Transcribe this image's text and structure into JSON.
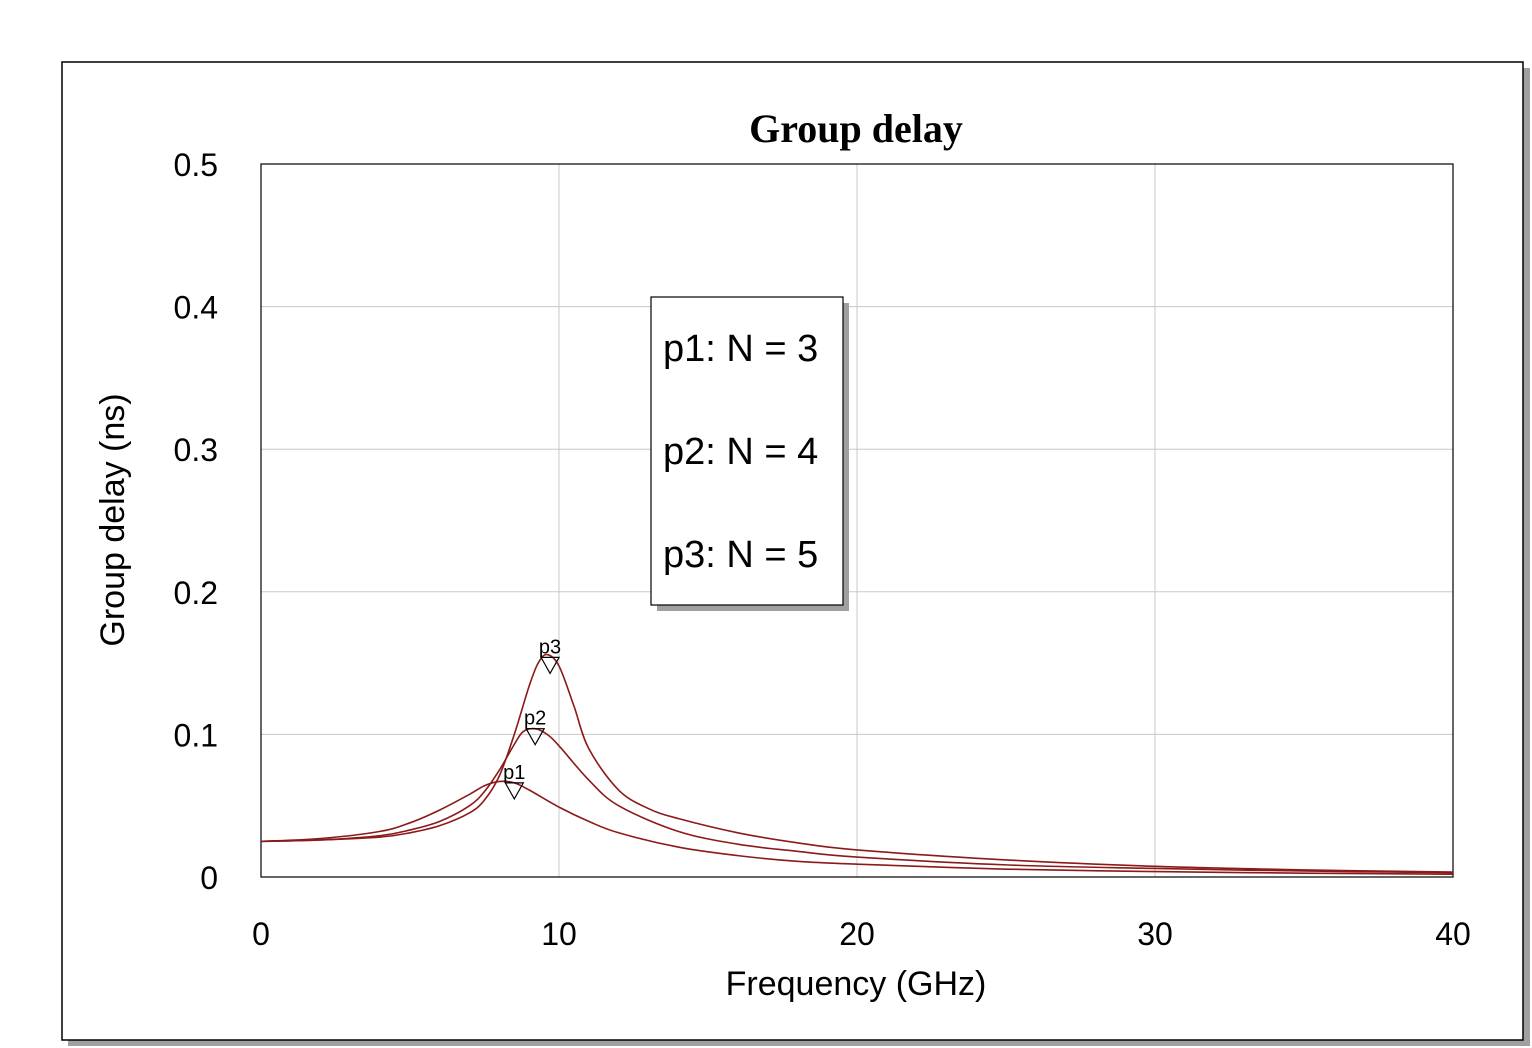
{
  "chart_data": {
    "type": "line",
    "title": "Group delay",
    "xlabel": "Frequency (GHz)",
    "ylabel": "Group delay (ns)",
    "xlim": [
      0,
      40
    ],
    "ylim": [
      0,
      0.5
    ],
    "xticks": [
      "0",
      "10",
      "20",
      "30",
      "40"
    ],
    "yticks": [
      "0",
      "0.1",
      "0.2",
      "0.3",
      "0.4",
      "0.5"
    ],
    "grid": true,
    "legend_position": "center-top",
    "line_color": "#8b1a1a",
    "legend": [
      "p1: N = 3",
      "p2: N = 4",
      "p3: N = 5"
    ],
    "series": [
      {
        "name": "p1",
        "marker": {
          "label": "p1",
          "x": 8.5
        },
        "x": [
          0,
          2,
          4,
          5,
          6,
          7,
          7.5,
          8,
          8.5,
          9,
          10,
          11,
          12,
          14,
          16,
          18,
          20,
          25,
          30,
          35,
          40
        ],
        "y": [
          0.025,
          0.027,
          0.032,
          0.038,
          0.047,
          0.058,
          0.064,
          0.067,
          0.066,
          0.061,
          0.049,
          0.039,
          0.031,
          0.021,
          0.015,
          0.011,
          0.009,
          0.0055,
          0.0038,
          0.0027,
          0.002
        ]
      },
      {
        "name": "p2",
        "marker": {
          "label": "p2",
          "x": 9.2
        },
        "x": [
          0,
          2,
          4,
          5,
          6,
          7,
          7.5,
          8,
          8.5,
          8.8,
          9.2,
          9.6,
          10,
          11,
          12,
          14,
          16,
          18,
          20,
          25,
          30,
          35,
          40
        ],
        "y": [
          0.025,
          0.026,
          0.029,
          0.033,
          0.039,
          0.05,
          0.06,
          0.075,
          0.093,
          0.102,
          0.104,
          0.1,
          0.092,
          0.068,
          0.05,
          0.032,
          0.023,
          0.018,
          0.014,
          0.0085,
          0.006,
          0.0042,
          0.003
        ]
      },
      {
        "name": "p3",
        "marker": {
          "label": "p3",
          "x": 9.7
        },
        "x": [
          0,
          2,
          4,
          5,
          6,
          7,
          7.5,
          8,
          8.5,
          9,
          9.3,
          9.6,
          10,
          10.5,
          11,
          12,
          13,
          14,
          16,
          18,
          20,
          25,
          30,
          35,
          40
        ],
        "y": [
          0.025,
          0.026,
          0.028,
          0.031,
          0.036,
          0.045,
          0.054,
          0.071,
          0.1,
          0.134,
          0.15,
          0.156,
          0.148,
          0.12,
          0.09,
          0.061,
          0.048,
          0.041,
          0.031,
          0.024,
          0.019,
          0.012,
          0.0075,
          0.005,
          0.0035
        ]
      }
    ]
  }
}
